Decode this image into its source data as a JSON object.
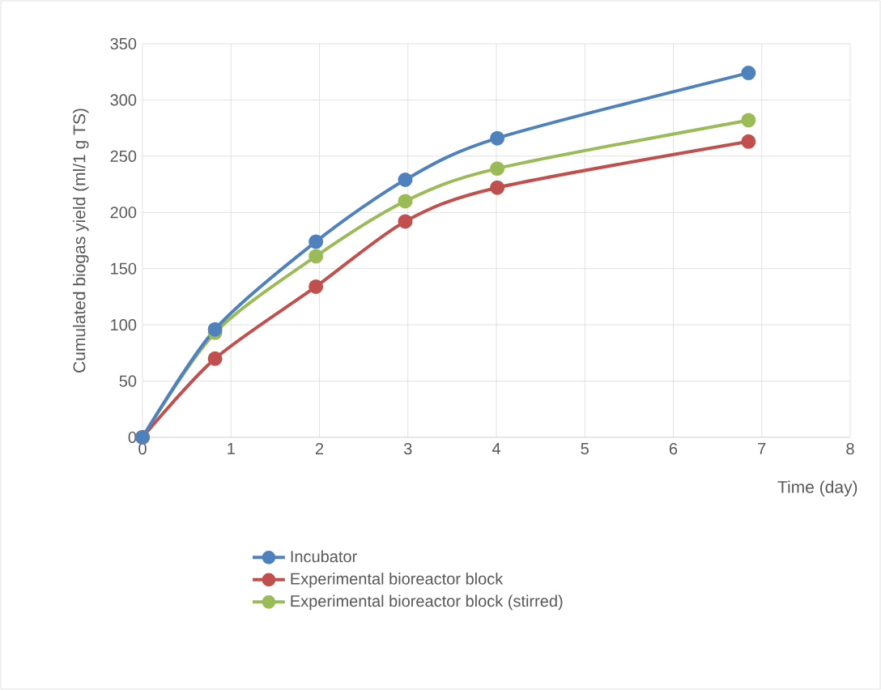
{
  "chart_data": {
    "type": "line",
    "xlabel": "Time (day)",
    "ylabel": "Cumulated biogas yield (ml/1 g TS)",
    "xlim": [
      0,
      8
    ],
    "xticks": [
      0,
      1,
      2,
      3,
      4,
      5,
      6,
      7,
      8
    ],
    "ylim": [
      0,
      350
    ],
    "yticks": [
      0,
      50,
      100,
      150,
      200,
      250,
      300,
      350
    ],
    "x": [
      0,
      0.82,
      1.96,
      2.97,
      4.01,
      6.85
    ],
    "series": [
      {
        "name": "Incubator",
        "color": "#4f81bd",
        "values": [
          0,
          96,
          174,
          229,
          266,
          324
        ]
      },
      {
        "name": "Experimental bioreactor block",
        "color": "#c0504d",
        "values": [
          0,
          70,
          134,
          192,
          222,
          263
        ]
      },
      {
        "name": "Experimental bioreactor block (stirred)",
        "color": "#9bbb59",
        "values": [
          0,
          93,
          161,
          210,
          239,
          282
        ]
      }
    ],
    "grid": true,
    "legend": "bottom",
    "marker": "circle",
    "line_style": "solid"
  }
}
